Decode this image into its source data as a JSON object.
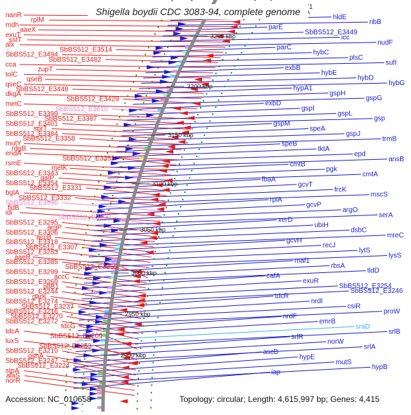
{
  "title": "Shigella boydii CDC 3083-94, complete genome",
  "accession": "Accession: NC_010658",
  "summary": "Topology: circular; Length: 4,615,997 bp; Genes: 4,415",
  "colors": {
    "left": "#e21b1b",
    "right": "#1a1acc",
    "pink": "#e886c6",
    "cyan": "#39b6e8",
    "ring": "#8a8a8a",
    "tick": "#1a8a1a"
  },
  "ticks": [
    "3250 kbp",
    "3200 kbp",
    "3150 kbp",
    "3100 kbp",
    "3050 kbp",
    "3000 kbp",
    "2950 kbp",
    "2900 kbp"
  ],
  "left_labels": [
    {
      "t": "nanR",
      "c": "left"
    },
    {
      "t": "rplM",
      "c": "left"
    },
    {
      "t": "mdh",
      "c": "left"
    },
    {
      "t": "aaeX",
      "c": "left"
    },
    {
      "t": "exuT",
      "c": "left"
    },
    {
      "t": "sstT",
      "c": "left"
    },
    {
      "t": "alx",
      "c": "left"
    },
    {
      "t": "SbBS512_E3514",
      "c": "left"
    },
    {
      "t": "SbBS512_E3494",
      "c": "left"
    },
    {
      "t": "SbBS512_E3482",
      "c": "left"
    },
    {
      "t": "cca",
      "c": "left"
    },
    {
      "t": "zupT",
      "c": "left"
    },
    {
      "t": "tolC",
      "c": "left"
    },
    {
      "t": "qseB",
      "c": "left"
    },
    {
      "t": "qseC",
      "c": "left"
    },
    {
      "t": "SbBS512_E3448",
      "c": "left"
    },
    {
      "t": "dkgA",
      "c": "left"
    },
    {
      "t": "SbBS512_E3429",
      "c": "left"
    },
    {
      "t": "metC",
      "c": "left"
    },
    {
      "t": "SbBS512_E3610",
      "c": "pink"
    },
    {
      "t": "SbBS512_E3399",
      "c": "left"
    },
    {
      "t": "SbBS512_E3387",
      "c": "left"
    },
    {
      "t": "SbBS512_E3401",
      "c": "left"
    },
    {
      "t": "sprT",
      "c": "left"
    },
    {
      "t": "SbBS512_E3384",
      "c": "left"
    },
    {
      "t": "SbBS512_E3358",
      "c": "left"
    },
    {
      "t": "mutY",
      "c": "left"
    },
    {
      "t": "rdgB",
      "c": "left"
    },
    {
      "t": "endA",
      "c": "left"
    },
    {
      "t": "SbBS512_E3353",
      "c": "left"
    },
    {
      "t": "rsmE",
      "c": "left"
    },
    {
      "t": "metK",
      "c": "left"
    },
    {
      "t": "SbBS512_E3343",
      "c": "left"
    },
    {
      "t": "galP",
      "c": "left"
    },
    {
      "t": "SbBS512_E3354",
      "c": "left"
    },
    {
      "t": "SbBS512_E3331",
      "c": "left"
    },
    {
      "t": "bglA",
      "c": "left"
    },
    {
      "t": "SbBS512_E3332",
      "c": "left"
    },
    {
      "t": "SbBS512_E3596",
      "c": "pink"
    },
    {
      "t": "fldB",
      "c": "left"
    },
    {
      "t": "idi",
      "c": "left"
    },
    {
      "t": "SbBS512_E3600",
      "c": "pink"
    },
    {
      "t": "SbBS512_E3295",
      "c": "left"
    },
    {
      "t": "argP",
      "c": "left"
    },
    {
      "t": "SbBS512_E3306",
      "c": "left"
    },
    {
      "t": "accB",
      "c": "left"
    },
    {
      "t": "SbBS512_E3318",
      "c": "left"
    },
    {
      "t": "SbBS512_E3307",
      "c": "left"
    },
    {
      "t": "SbBS512_E3283",
      "c": "left"
    },
    {
      "t": "aaeR",
      "c": "left"
    },
    {
      "t": "SbBS512_E3285",
      "c": "left"
    },
    {
      "t": "SbBS512_E3255",
      "c": "left"
    },
    {
      "t": "SbBS512_E3299",
      "c": "left"
    },
    {
      "t": "accC",
      "c": "left"
    },
    {
      "t": "SbBS512_E3269",
      "c": "left"
    },
    {
      "t": "pflB1",
      "c": "left"
    },
    {
      "t": "SbBS512_E3244",
      "c": "left"
    },
    {
      "t": "garK",
      "c": "left"
    },
    {
      "t": "SbBS512_E3274",
      "c": "left"
    },
    {
      "t": "SbBS512_E3237",
      "c": "left"
    },
    {
      "t": "SbBS512_E3216",
      "c": "left"
    },
    {
      "t": "SbBS512_E3270",
      "c": "left"
    },
    {
      "t": "SbBS512_E3272",
      "c": "left"
    },
    {
      "t": "tdcG",
      "c": "left"
    },
    {
      "t": "tdcA",
      "c": "left"
    },
    {
      "t": "SbBS512_E3209",
      "c": "left"
    },
    {
      "t": "luxS",
      "c": "left"
    },
    {
      "t": "SbBS512_E3253",
      "c": "left"
    },
    {
      "t": "SbBS512_E3210",
      "c": "left"
    },
    {
      "t": "gshA",
      "c": "left"
    },
    {
      "t": "SbBS512_E3247",
      "c": "left"
    },
    {
      "t": "SbBS512_E3224",
      "c": "left"
    },
    {
      "t": "stpA",
      "c": "left"
    },
    {
      "t": "alaS",
      "c": "left"
    },
    {
      "t": "norR",
      "c": "left"
    }
  ],
  "right_labels": [
    {
      "t": "SbBS512_E3471",
      "c": "right"
    },
    {
      "t": "yqiA",
      "c": "right"
    },
    {
      "t": "hldE",
      "c": "right"
    },
    {
      "t": "ribB",
      "c": "right"
    },
    {
      "t": "parE",
      "c": "right"
    },
    {
      "t": "SbBS512_E3449",
      "c": "right"
    },
    {
      "t": "icc",
      "c": "right"
    },
    {
      "t": "nudF",
      "c": "right"
    },
    {
      "t": "parC",
      "c": "right"
    },
    {
      "t": "hybC",
      "c": "right"
    },
    {
      "t": "plsC",
      "c": "right"
    },
    {
      "t": "sufI",
      "c": "right"
    },
    {
      "t": "exbB",
      "c": "right"
    },
    {
      "t": "hybE",
      "c": "right"
    },
    {
      "t": "hybD",
      "c": "right"
    },
    {
      "t": "hybG",
      "c": "right"
    },
    {
      "t": "hypA1",
      "c": "right"
    },
    {
      "t": "gspH",
      "c": "right"
    },
    {
      "t": "gspG",
      "c": "right"
    },
    {
      "t": "exbD",
      "c": "right"
    },
    {
      "t": "gspI",
      "c": "right"
    },
    {
      "t": "gspL",
      "c": "right"
    },
    {
      "t": "gsp",
      "c": "right"
    },
    {
      "t": "gspM",
      "c": "right"
    },
    {
      "t": "speA",
      "c": "right"
    },
    {
      "t": "gspJ",
      "c": "right"
    },
    {
      "t": "trmB",
      "c": "right"
    },
    {
      "t": "speB",
      "c": "right"
    },
    {
      "t": "tktA",
      "c": "right"
    },
    {
      "t": "epd",
      "c": "right"
    },
    {
      "t": "ansB",
      "c": "right"
    },
    {
      "t": "cmtB",
      "c": "right"
    },
    {
      "t": "pgk",
      "c": "right"
    },
    {
      "t": "cmtA",
      "c": "right"
    },
    {
      "t": "fbaA",
      "c": "right"
    },
    {
      "t": "gcvT",
      "c": "right"
    },
    {
      "t": "frcK",
      "c": "right"
    },
    {
      "t": "mscS",
      "c": "right"
    },
    {
      "t": "rpiA",
      "c": "right"
    },
    {
      "t": "gcvP",
      "c": "right"
    },
    {
      "t": "argO",
      "c": "right"
    },
    {
      "t": "serA",
      "c": "right"
    },
    {
      "t": "xerD",
      "c": "right"
    },
    {
      "t": "ubiH",
      "c": "right"
    },
    {
      "t": "dsbC",
      "c": "right"
    },
    {
      "t": "mreC",
      "c": "right"
    },
    {
      "t": "gcvH",
      "c": "right"
    },
    {
      "t": "recJ",
      "c": "right"
    },
    {
      "t": "lytS",
      "c": "right"
    },
    {
      "t": "lysS",
      "c": "right"
    },
    {
      "t": "maf1",
      "c": "right"
    },
    {
      "t": "rbsA",
      "c": "right"
    },
    {
      "t": "tldD",
      "c": "right"
    },
    {
      "t": "cafA",
      "c": "right"
    },
    {
      "t": "exuR",
      "c": "right"
    },
    {
      "t": "SbBS512_E3254",
      "c": "right"
    },
    {
      "t": "SbBS512_E3246",
      "c": "right"
    },
    {
      "t": "tdcR",
      "c": "right"
    },
    {
      "t": "nrdI",
      "c": "right"
    },
    {
      "t": "csiR",
      "c": "right"
    },
    {
      "t": "proW",
      "c": "right"
    },
    {
      "t": "nrdF",
      "c": "right"
    },
    {
      "t": "emrB",
      "c": "right"
    },
    {
      "t": "sraD",
      "c": "cyan"
    },
    {
      "t": "srlB",
      "c": "right"
    },
    {
      "t": "srlR",
      "c": "right"
    },
    {
      "t": "norW",
      "c": "right"
    },
    {
      "t": "srlA",
      "c": "right"
    },
    {
      "t": "ascB",
      "c": "right"
    },
    {
      "t": "hypE",
      "c": "right"
    },
    {
      "t": "mutS",
      "c": "right"
    },
    {
      "t": "hypB",
      "c": "right"
    },
    {
      "t": "iap",
      "c": "right"
    }
  ]
}
